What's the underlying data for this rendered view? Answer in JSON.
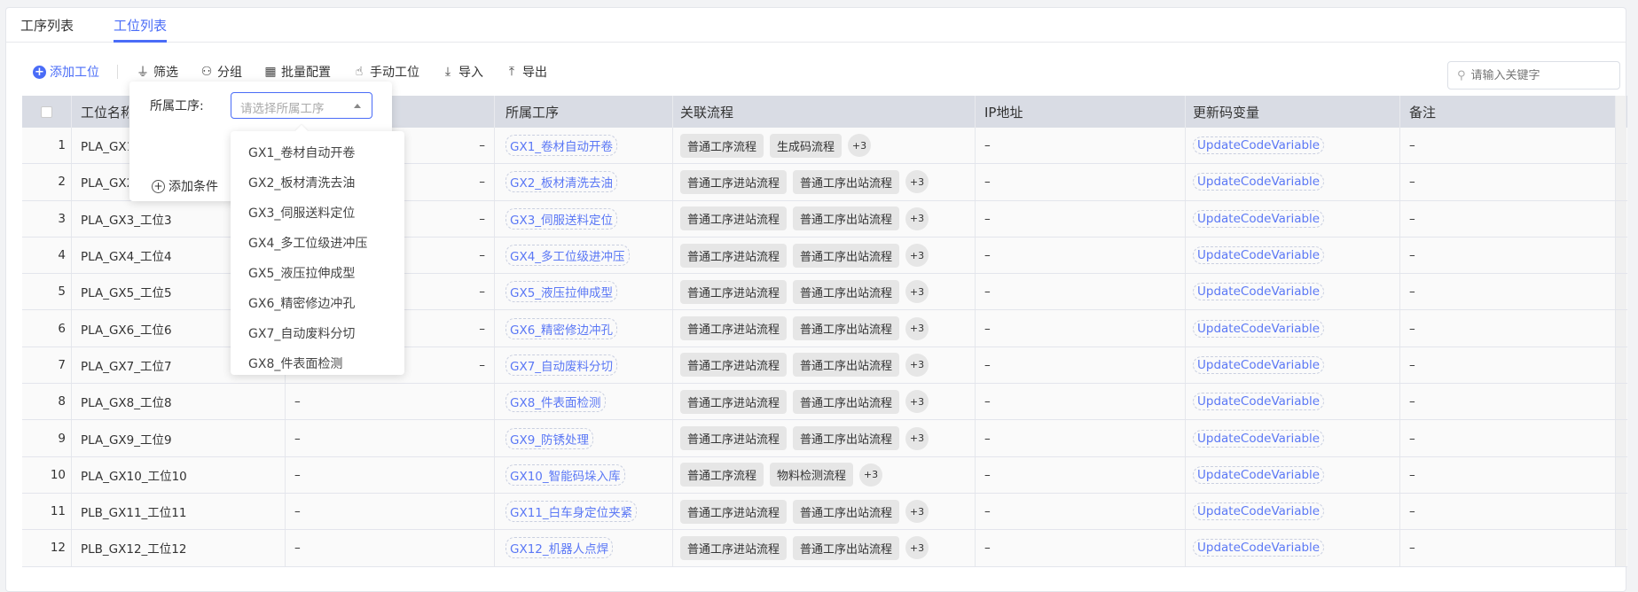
{
  "tabs": [
    {
      "label": "工序列表"
    },
    {
      "label": "工位列表",
      "active": true
    }
  ],
  "toolbar": {
    "add": "添加工位",
    "filter": "筛选",
    "group": "分组",
    "batch": "批量配置",
    "manual": "手动工位",
    "import": "导入",
    "export": "导出"
  },
  "search": {
    "placeholder": "请输入关键字"
  },
  "columns": [
    "",
    "工位名称",
    "",
    "所属工序",
    "关联流程",
    "IP地址",
    "更新码变量",
    "备注"
  ],
  "rows": [
    {
      "no": "1",
      "name": "PLA_GX1_工位1",
      "col2": "–",
      "process": "GX1_卷材自动开卷",
      "flows": [
        "普通工序流程",
        "生成码流程"
      ],
      "more": "+3",
      "ip": "–",
      "var": "UpdateCodeVariable",
      "note": "–"
    },
    {
      "no": "2",
      "name": "PLA_GX2_工位2",
      "col2": "–",
      "process": "GX2_板材清洗去油",
      "flows": [
        "普通工序进站流程",
        "普通工序出站流程"
      ],
      "more": "+3",
      "ip": "–",
      "var": "UpdateCodeVariable",
      "note": "–"
    },
    {
      "no": "3",
      "name": "PLA_GX3_工位3",
      "col2": "–",
      "process": "GX3_伺服送料定位",
      "flows": [
        "普通工序进站流程",
        "普通工序出站流程"
      ],
      "more": "+3",
      "ip": "–",
      "var": "UpdateCodeVariable",
      "note": "–"
    },
    {
      "no": "4",
      "name": "PLA_GX4_工位4",
      "col2": "–",
      "process": "GX4_多工位级进冲压",
      "flows": [
        "普通工序进站流程",
        "普通工序出站流程"
      ],
      "more": "+3",
      "ip": "–",
      "var": "UpdateCodeVariable",
      "note": "–"
    },
    {
      "no": "5",
      "name": "PLA_GX5_工位5",
      "col2": "–",
      "process": "GX5_液压拉伸成型",
      "flows": [
        "普通工序进站流程",
        "普通工序出站流程"
      ],
      "more": "+3",
      "ip": "–",
      "var": "UpdateCodeVariable",
      "note": "–"
    },
    {
      "no": "6",
      "name": "PLA_GX6_工位6",
      "col2": "–",
      "process": "GX6_精密修边冲孔",
      "flows": [
        "普通工序进站流程",
        "普通工序出站流程"
      ],
      "more": "+3",
      "ip": "–",
      "var": "UpdateCodeVariable",
      "note": "–"
    },
    {
      "no": "7",
      "name": "PLA_GX7_工位7",
      "col2": "–",
      "process": "GX7_自动废料分切",
      "flows": [
        "普通工序进站流程",
        "普通工序出站流程"
      ],
      "more": "+3",
      "ip": "–",
      "var": "UpdateCodeVariable",
      "note": "–"
    },
    {
      "no": "8",
      "name": "PLA_GX8_工位8",
      "col2": "–",
      "process": "GX8_件表面检测",
      "flows": [
        "普通工序进站流程",
        "普通工序出站流程"
      ],
      "more": "+3",
      "ip": "–",
      "var": "UpdateCodeVariable",
      "note": "–"
    },
    {
      "no": "9",
      "name": "PLA_GX9_工位9",
      "col2": "–",
      "process": "GX9_防锈处理",
      "flows": [
        "普通工序进站流程",
        "普通工序出站流程"
      ],
      "more": "+3",
      "ip": "–",
      "var": "UpdateCodeVariable",
      "note": "–"
    },
    {
      "no": "10",
      "name": "PLA_GX10_工位10",
      "col2": "–",
      "process": "GX10_智能码垛入库",
      "flows": [
        "普通工序流程",
        "物料检测流程"
      ],
      "more": "+3",
      "ip": "–",
      "var": "UpdateCodeVariable",
      "note": "–"
    },
    {
      "no": "11",
      "name": "PLB_GX11_工位11",
      "col2": "–",
      "process": "GX11_白车身定位夹紧",
      "flows": [
        "普通工序进站流程",
        "普通工序出站流程"
      ],
      "more": "+3",
      "ip": "–",
      "var": "UpdateCodeVariable",
      "note": "–"
    },
    {
      "no": "12",
      "name": "PLB_GX12_工位12",
      "col2": "–",
      "process": "GX12_机器人点焊",
      "flows": [
        "普通工序进站流程",
        "普通工序出站流程"
      ],
      "more": "+3",
      "ip": "–",
      "var": "UpdateCodeVariable",
      "note": "–"
    }
  ],
  "filter_popover": {
    "label": "所属工序:",
    "select_placeholder": "请选择所属工序",
    "add_condition": "添加条件",
    "options": [
      "GX1_卷材自动开卷",
      "GX2_板材清洗去油",
      "GX3_伺服送料定位",
      "GX4_多工位级进冲压",
      "GX5_液压拉伸成型",
      "GX6_精密修边冲孔",
      "GX7_自动废料分切",
      "GX8_件表面检测"
    ]
  },
  "colors": {
    "accent": "#4a6cf7",
    "header_bg": "#d9dce4"
  }
}
